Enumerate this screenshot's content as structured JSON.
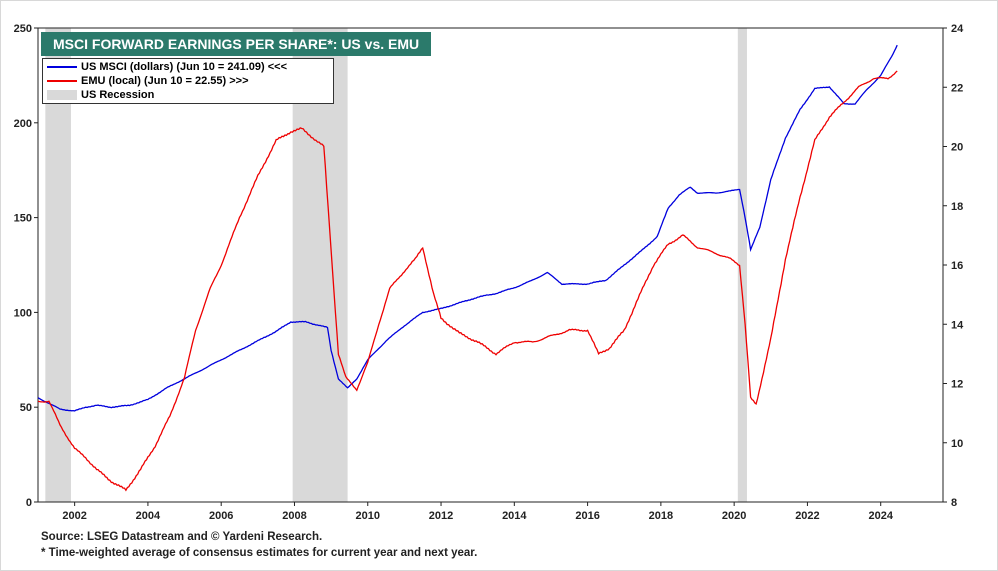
{
  "chart_data": {
    "type": "line",
    "title": "MSCI FORWARD EARNINGS PER SHARE*: US vs. EMU",
    "left_axis": {
      "ticks": [
        0,
        50,
        100,
        150,
        200,
        250
      ],
      "range": [
        0,
        250
      ]
    },
    "right_axis": {
      "ticks": [
        8,
        10,
        12,
        14,
        16,
        18,
        20,
        22,
        24
      ],
      "range": [
        8,
        24
      ]
    },
    "x_axis": {
      "ticks": [
        "2002",
        "2004",
        "2006",
        "2008",
        "2010",
        "2012",
        "2014",
        "2016",
        "2018",
        "2020",
        "2022",
        "2024"
      ],
      "tick_years": [
        2002,
        2004,
        2006,
        2008,
        2010,
        2012,
        2014,
        2016,
        2018,
        2020,
        2022,
        2024
      ],
      "range": [
        2001.0,
        2025.7
      ]
    },
    "recessions": [
      [
        2001.2,
        2001.9
      ],
      [
        2007.95,
        2009.45
      ],
      [
        2020.1,
        2020.35
      ]
    ],
    "series": [
      {
        "name": "US MSCI (dollars) (Jun 10 = 241.09) <<<",
        "axis": "left",
        "color": "#0000dd",
        "points": [
          [
            2001.0,
            55
          ],
          [
            2001.3,
            52
          ],
          [
            2001.6,
            49
          ],
          [
            2002.0,
            48
          ],
          [
            2002.3,
            50
          ],
          [
            2002.6,
            51
          ],
          [
            2003.0,
            50
          ],
          [
            2003.5,
            51
          ],
          [
            2004.0,
            54
          ],
          [
            2004.5,
            60
          ],
          [
            2005.0,
            65
          ],
          [
            2005.5,
            70
          ],
          [
            2006.0,
            75
          ],
          [
            2006.5,
            80
          ],
          [
            2007.0,
            85
          ],
          [
            2007.5,
            90
          ],
          [
            2007.9,
            95
          ],
          [
            2008.3,
            95
          ],
          [
            2008.7,
            93
          ],
          [
            2008.9,
            92
          ],
          [
            2009.0,
            80
          ],
          [
            2009.2,
            65
          ],
          [
            2009.45,
            60
          ],
          [
            2009.7,
            65
          ],
          [
            2010.0,
            75
          ],
          [
            2010.5,
            85
          ],
          [
            2011.0,
            93
          ],
          [
            2011.5,
            100
          ],
          [
            2012.0,
            102
          ],
          [
            2012.5,
            105
          ],
          [
            2013.0,
            108
          ],
          [
            2013.5,
            110
          ],
          [
            2014.0,
            113
          ],
          [
            2014.5,
            117
          ],
          [
            2014.9,
            121
          ],
          [
            2015.3,
            115
          ],
          [
            2015.7,
            115
          ],
          [
            2016.0,
            115
          ],
          [
            2016.5,
            117
          ],
          [
            2017.0,
            125
          ],
          [
            2017.5,
            133
          ],
          [
            2017.9,
            140
          ],
          [
            2018.2,
            155
          ],
          [
            2018.5,
            162
          ],
          [
            2018.8,
            166
          ],
          [
            2019.0,
            163
          ],
          [
            2019.5,
            163
          ],
          [
            2019.9,
            164
          ],
          [
            2020.15,
            165
          ],
          [
            2020.3,
            150
          ],
          [
            2020.45,
            133
          ],
          [
            2020.7,
            145
          ],
          [
            2021.0,
            170
          ],
          [
            2021.4,
            192
          ],
          [
            2021.8,
            207
          ],
          [
            2022.2,
            218
          ],
          [
            2022.6,
            219
          ],
          [
            2023.0,
            210
          ],
          [
            2023.3,
            210
          ],
          [
            2023.6,
            217
          ],
          [
            2024.0,
            225
          ],
          [
            2024.3,
            235
          ],
          [
            2024.45,
            241
          ]
        ]
      },
      {
        "name": "EMU (local) (Jun 10 = 22.55) >>>",
        "axis": "right",
        "color": "#ee0000",
        "points": [
          [
            2001.0,
            11.4
          ],
          [
            2001.3,
            11.4
          ],
          [
            2001.6,
            10.6
          ],
          [
            2002.0,
            9.8
          ],
          [
            2002.3,
            9.5
          ],
          [
            2002.6,
            9.1
          ],
          [
            2003.0,
            8.7
          ],
          [
            2003.4,
            8.4
          ],
          [
            2003.8,
            9.1
          ],
          [
            2004.2,
            9.9
          ],
          [
            2004.6,
            10.9
          ],
          [
            2005.0,
            12.2
          ],
          [
            2005.3,
            13.8
          ],
          [
            2005.7,
            15.2
          ],
          [
            2006.0,
            16.0
          ],
          [
            2006.5,
            17.6
          ],
          [
            2007.0,
            19.0
          ],
          [
            2007.5,
            20.2
          ],
          [
            2007.9,
            20.5
          ],
          [
            2008.2,
            20.6
          ],
          [
            2008.5,
            20.3
          ],
          [
            2008.8,
            20.0
          ],
          [
            2009.0,
            16.5
          ],
          [
            2009.2,
            13.0
          ],
          [
            2009.4,
            12.2
          ],
          [
            2009.7,
            11.8
          ],
          [
            2010.0,
            12.7
          ],
          [
            2010.3,
            14.0
          ],
          [
            2010.6,
            15.2
          ],
          [
            2011.0,
            15.8
          ],
          [
            2011.3,
            16.2
          ],
          [
            2011.5,
            16.6
          ],
          [
            2011.8,
            15.0
          ],
          [
            2012.0,
            14.2
          ],
          [
            2012.5,
            13.7
          ],
          [
            2013.0,
            13.4
          ],
          [
            2013.5,
            13.0
          ],
          [
            2014.0,
            13.4
          ],
          [
            2014.5,
            13.4
          ],
          [
            2015.0,
            13.6
          ],
          [
            2015.5,
            13.8
          ],
          [
            2016.0,
            13.8
          ],
          [
            2016.3,
            13.0
          ],
          [
            2016.6,
            13.2
          ],
          [
            2017.0,
            13.8
          ],
          [
            2017.5,
            15.2
          ],
          [
            2017.8,
            16.0
          ],
          [
            2018.2,
            16.7
          ],
          [
            2018.6,
            17.0
          ],
          [
            2019.0,
            16.6
          ],
          [
            2019.5,
            16.4
          ],
          [
            2019.9,
            16.2
          ],
          [
            2020.15,
            16.0
          ],
          [
            2020.3,
            14.0
          ],
          [
            2020.45,
            11.5
          ],
          [
            2020.6,
            11.3
          ],
          [
            2021.0,
            13.5
          ],
          [
            2021.4,
            16.2
          ],
          [
            2021.8,
            18.3
          ],
          [
            2022.2,
            20.2
          ],
          [
            2022.6,
            21.0
          ],
          [
            2023.0,
            21.5
          ],
          [
            2023.4,
            22.0
          ],
          [
            2023.8,
            22.3
          ],
          [
            2024.2,
            22.3
          ],
          [
            2024.45,
            22.55
          ]
        ]
      }
    ],
    "legend": {
      "recession_label": "US Recession",
      "recession_color": "#d9d9d9"
    }
  },
  "footer": {
    "source": "Source: LSEG Datastream and © Yardeni Research.",
    "note": "* Time-weighted average of consensus estimates for current year and next year."
  }
}
